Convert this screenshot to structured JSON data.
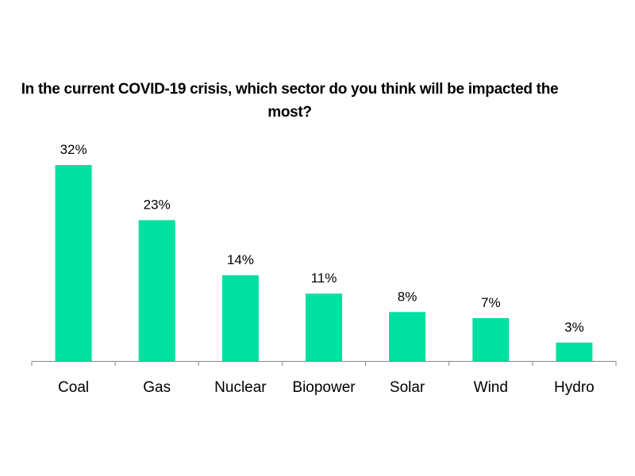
{
  "chart_data": {
    "type": "bar",
    "title": "In the current COVID-19 crisis, which sector do you think will be impacted the most?",
    "categories": [
      "Coal",
      "Gas",
      "Nuclear",
      "Biopower",
      "Solar",
      "Wind",
      "Hydro"
    ],
    "values": [
      32,
      23,
      14,
      11,
      8,
      7,
      3
    ],
    "value_labels": [
      "32%",
      "23%",
      "14%",
      "11%",
      "8%",
      "7%",
      "3%"
    ],
    "bar_color": "#00E0A0",
    "ylim": [
      0,
      32
    ],
    "grid": false,
    "legend": "none"
  }
}
